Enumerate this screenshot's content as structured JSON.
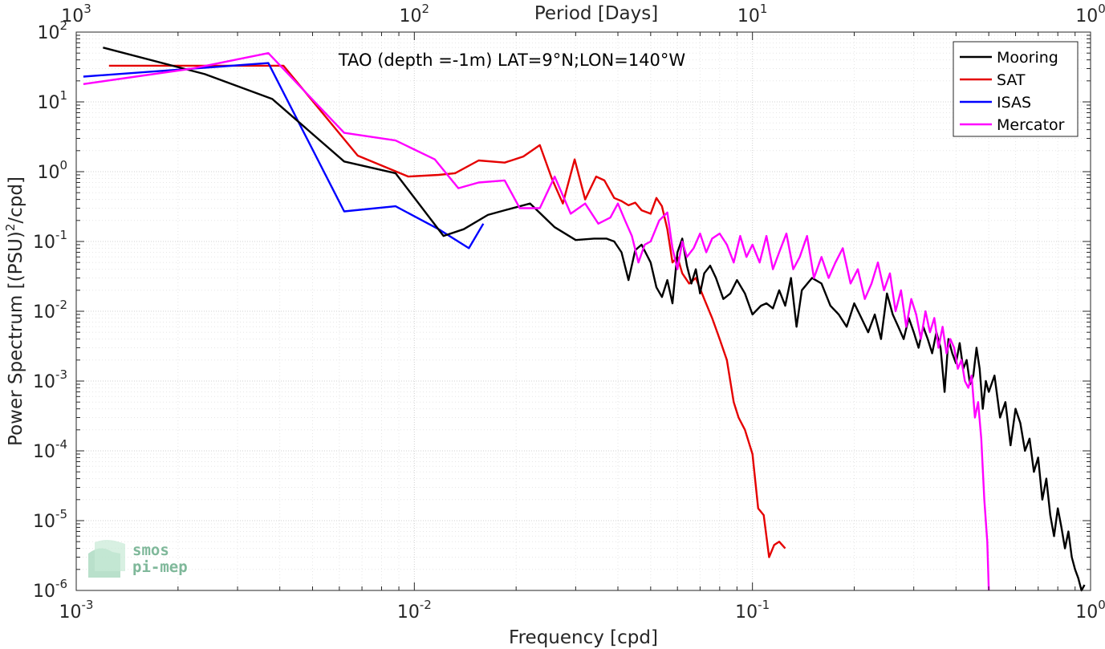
{
  "chart_data": {
    "type": "line",
    "title": "TAO (depth =-1m) LAT=9°N;LON=140°W",
    "xlabel": "Frequency [cpd]",
    "ylabel": "Power Spectrum [(PSU)",
    "ylabel_sup": "2",
    "ylabel_tail": "/cpd]",
    "top_xlabel": "Period [Days]",
    "xscale": "log",
    "yscale": "log",
    "xlim": [
      0.001,
      1
    ],
    "ylim": [
      1e-06,
      100
    ],
    "grid": true,
    "legend_position": "top-right",
    "x_ticks": [
      {
        "value": 0.001,
        "base": "10",
        "exp": "-3"
      },
      {
        "value": 0.01,
        "base": "10",
        "exp": "-2"
      },
      {
        "value": 0.1,
        "base": "10",
        "exp": "-1"
      },
      {
        "value": 1,
        "base": "10",
        "exp": "0"
      }
    ],
    "top_ticks": [
      {
        "value": 0.001,
        "base": "10",
        "exp": "3"
      },
      {
        "value": 0.01,
        "base": "10",
        "exp": "2"
      },
      {
        "value": 0.1,
        "base": "10",
        "exp": "1"
      },
      {
        "value": 1,
        "base": "10",
        "exp": "0"
      }
    ],
    "y_ticks": [
      {
        "value": 100,
        "base": "10",
        "exp": "2"
      },
      {
        "value": 10,
        "base": "10",
        "exp": "1"
      },
      {
        "value": 1,
        "base": "10",
        "exp": "0"
      },
      {
        "value": 0.1,
        "base": "10",
        "exp": "-1"
      },
      {
        "value": 0.01,
        "base": "10",
        "exp": "-2"
      },
      {
        "value": 0.001,
        "base": "10",
        "exp": "-3"
      },
      {
        "value": 0.0001,
        "base": "10",
        "exp": "-4"
      },
      {
        "value": 1e-05,
        "base": "10",
        "exp": "-5"
      },
      {
        "value": 1e-06,
        "base": "10",
        "exp": "-6"
      }
    ],
    "series": [
      {
        "name": "Mooring",
        "color": "#000000",
        "x": [
          0.0012,
          0.0024,
          0.0038,
          0.0062,
          0.0088,
          0.0122,
          0.014,
          0.0165,
          0.0185,
          0.022,
          0.026,
          0.03,
          0.034,
          0.037,
          0.039,
          0.041,
          0.043,
          0.045,
          0.047,
          0.05,
          0.052,
          0.054,
          0.056,
          0.058,
          0.06,
          0.062,
          0.064,
          0.066,
          0.068,
          0.07,
          0.072,
          0.075,
          0.078,
          0.082,
          0.086,
          0.09,
          0.095,
          0.1,
          0.106,
          0.11,
          0.115,
          0.12,
          0.125,
          0.13,
          0.135,
          0.14,
          0.15,
          0.16,
          0.17,
          0.18,
          0.19,
          0.2,
          0.21,
          0.22,
          0.23,
          0.24,
          0.25,
          0.26,
          0.27,
          0.28,
          0.29,
          0.3,
          0.31,
          0.32,
          0.33,
          0.34,
          0.35,
          0.36,
          0.37,
          0.38,
          0.39,
          0.4,
          0.41,
          0.42,
          0.43,
          0.44,
          0.45,
          0.46,
          0.47,
          0.48,
          0.49,
          0.5,
          0.52,
          0.54,
          0.56,
          0.58,
          0.6,
          0.62,
          0.64,
          0.66,
          0.68,
          0.7,
          0.72,
          0.74,
          0.76,
          0.78,
          0.8,
          0.82,
          0.84,
          0.86,
          0.88,
          0.9,
          0.92,
          0.94,
          0.96
        ],
        "y": [
          60,
          25,
          11,
          1.4,
          0.95,
          0.12,
          0.15,
          0.24,
          0.28,
          0.35,
          0.16,
          0.105,
          0.11,
          0.11,
          0.1,
          0.07,
          0.028,
          0.075,
          0.09,
          0.05,
          0.022,
          0.016,
          0.028,
          0.013,
          0.07,
          0.11,
          0.045,
          0.025,
          0.04,
          0.018,
          0.035,
          0.045,
          0.03,
          0.015,
          0.018,
          0.028,
          0.018,
          0.009,
          0.012,
          0.013,
          0.011,
          0.02,
          0.012,
          0.03,
          0.006,
          0.02,
          0.03,
          0.025,
          0.012,
          0.009,
          0.006,
          0.013,
          0.008,
          0.005,
          0.009,
          0.004,
          0.018,
          0.009,
          0.006,
          0.004,
          0.008,
          0.005,
          0.003,
          0.006,
          0.004,
          0.0025,
          0.005,
          0.003,
          0.0007,
          0.004,
          0.0025,
          0.0018,
          0.0035,
          0.0015,
          0.002,
          0.0009,
          0.0012,
          0.003,
          0.0015,
          0.0004,
          0.001,
          0.0007,
          0.0012,
          0.0003,
          0.0005,
          0.00012,
          0.0004,
          0.00025,
          0.0001,
          0.00015,
          5e-05,
          8e-05,
          2e-05,
          4e-05,
          1.2e-05,
          6e-06,
          1.5e-05,
          8e-06,
          4e-06,
          7e-06,
          3e-06,
          2e-06,
          1.5e-06,
          1e-06,
          1.2e-06
        ]
      },
      {
        "name": "SAT",
        "color": "#e50000",
        "x": [
          0.00125,
          0.0041,
          0.0068,
          0.0096,
          0.0118,
          0.0132,
          0.0155,
          0.0185,
          0.021,
          0.0235,
          0.0255,
          0.0275,
          0.0298,
          0.032,
          0.0345,
          0.0365,
          0.039,
          0.041,
          0.043,
          0.045,
          0.047,
          0.05,
          0.052,
          0.054,
          0.056,
          0.058,
          0.06,
          0.062,
          0.065,
          0.068,
          0.072,
          0.076,
          0.08,
          0.084,
          0.088,
          0.091,
          0.095,
          0.1,
          0.104,
          0.108,
          0.112,
          0.116,
          0.12,
          0.125
        ],
        "y": [
          33,
          33,
          1.7,
          0.85,
          0.9,
          0.95,
          1.45,
          1.35,
          1.65,
          2.4,
          0.8,
          0.35,
          1.5,
          0.4,
          0.85,
          0.75,
          0.42,
          0.38,
          0.33,
          0.36,
          0.28,
          0.25,
          0.42,
          0.32,
          0.15,
          0.05,
          0.06,
          0.035,
          0.025,
          0.03,
          0.015,
          0.008,
          0.004,
          0.002,
          0.0005,
          0.0003,
          0.0002,
          9e-05,
          1.5e-05,
          1.2e-05,
          3e-06,
          4.5e-06,
          5e-06,
          4e-06
        ]
      },
      {
        "name": "ISAS",
        "color": "#0000ff",
        "x": [
          0.00105,
          0.0037,
          0.0062,
          0.0088,
          0.0118,
          0.0145,
          0.016
        ],
        "y": [
          23,
          36,
          0.27,
          0.32,
          0.15,
          0.08,
          0.18
        ]
      },
      {
        "name": "Mercator",
        "color": "#ff00ff",
        "x": [
          0.00105,
          0.0022,
          0.0037,
          0.0062,
          0.0088,
          0.0115,
          0.0135,
          0.0155,
          0.0185,
          0.0205,
          0.0235,
          0.026,
          0.029,
          0.032,
          0.035,
          0.038,
          0.04,
          0.042,
          0.044,
          0.046,
          0.048,
          0.05,
          0.053,
          0.056,
          0.058,
          0.06,
          0.062,
          0.064,
          0.067,
          0.07,
          0.073,
          0.076,
          0.08,
          0.084,
          0.088,
          0.092,
          0.096,
          0.1,
          0.105,
          0.11,
          0.115,
          0.12,
          0.126,
          0.132,
          0.138,
          0.145,
          0.152,
          0.16,
          0.168,
          0.176,
          0.185,
          0.195,
          0.205,
          0.215,
          0.225,
          0.235,
          0.245,
          0.255,
          0.265,
          0.275,
          0.285,
          0.295,
          0.305,
          0.315,
          0.325,
          0.335,
          0.345,
          0.355,
          0.365,
          0.375,
          0.385,
          0.395,
          0.405,
          0.415,
          0.425,
          0.435,
          0.445,
          0.455,
          0.465,
          0.475,
          0.485,
          0.495,
          0.5
        ],
        "y": [
          18,
          30,
          50,
          3.6,
          2.8,
          1.5,
          0.58,
          0.7,
          0.75,
          0.3,
          0.3,
          0.85,
          0.25,
          0.35,
          0.18,
          0.22,
          0.35,
          0.2,
          0.12,
          0.05,
          0.09,
          0.1,
          0.2,
          0.26,
          0.08,
          0.04,
          0.1,
          0.06,
          0.08,
          0.13,
          0.07,
          0.11,
          0.13,
          0.09,
          0.05,
          0.12,
          0.06,
          0.09,
          0.05,
          0.12,
          0.04,
          0.07,
          0.13,
          0.04,
          0.06,
          0.12,
          0.03,
          0.06,
          0.03,
          0.05,
          0.08,
          0.025,
          0.04,
          0.015,
          0.025,
          0.05,
          0.02,
          0.035,
          0.01,
          0.02,
          0.006,
          0.015,
          0.009,
          0.004,
          0.01,
          0.005,
          0.008,
          0.003,
          0.006,
          0.0025,
          0.004,
          0.003,
          0.0015,
          0.002,
          0.001,
          0.0008,
          0.0012,
          0.0003,
          0.0005,
          0.00015,
          2e-05,
          5e-06,
          1e-06
        ]
      }
    ]
  },
  "logo": {
    "line1": "smos",
    "line2": "pi-mep"
  }
}
